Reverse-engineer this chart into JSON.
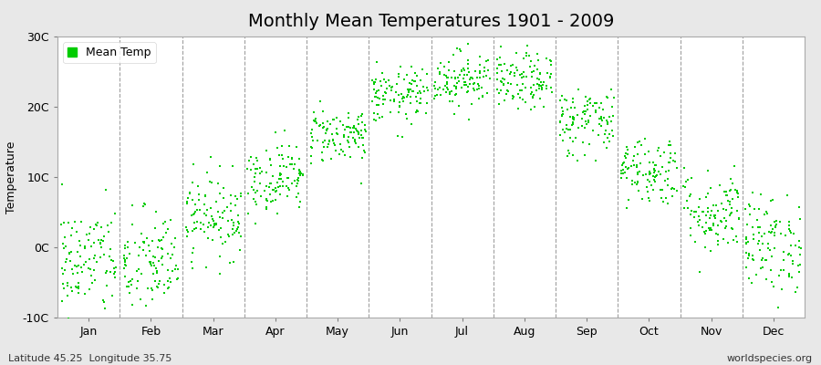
{
  "title": "Monthly Mean Temperatures 1901 - 2009",
  "ylabel": "Temperature",
  "xlabel_labels": [
    "Jan",
    "Feb",
    "Mar",
    "Apr",
    "May",
    "Jun",
    "Jul",
    "Aug",
    "Sep",
    "Oct",
    "Nov",
    "Dec"
  ],
  "ylim": [
    -10,
    30
  ],
  "yticks": [
    -10,
    0,
    10,
    20,
    30
  ],
  "ytick_labels": [
    "-10C",
    "0C",
    "10C",
    "20C",
    "30C"
  ],
  "dot_color": "#00cc00",
  "plot_bg_color": "#ffffff",
  "fig_bg_color": "#e8e8e8",
  "legend_label": "Mean Temp",
  "footer_left": "Latitude 45.25  Longitude 35.75",
  "footer_right": "worldspecies.org",
  "title_fontsize": 14,
  "axis_fontsize": 9,
  "tick_fontsize": 9,
  "dot_size": 3,
  "monthly_means": [
    -2.0,
    -2.5,
    4.5,
    10.0,
    16.0,
    21.5,
    24.0,
    23.5,
    18.0,
    11.0,
    5.0,
    0.5
  ],
  "monthly_stds": [
    4.0,
    4.0,
    3.0,
    2.5,
    2.0,
    2.0,
    2.0,
    2.0,
    2.5,
    2.5,
    3.0,
    3.5
  ],
  "n_years": 109,
  "seed": 42
}
